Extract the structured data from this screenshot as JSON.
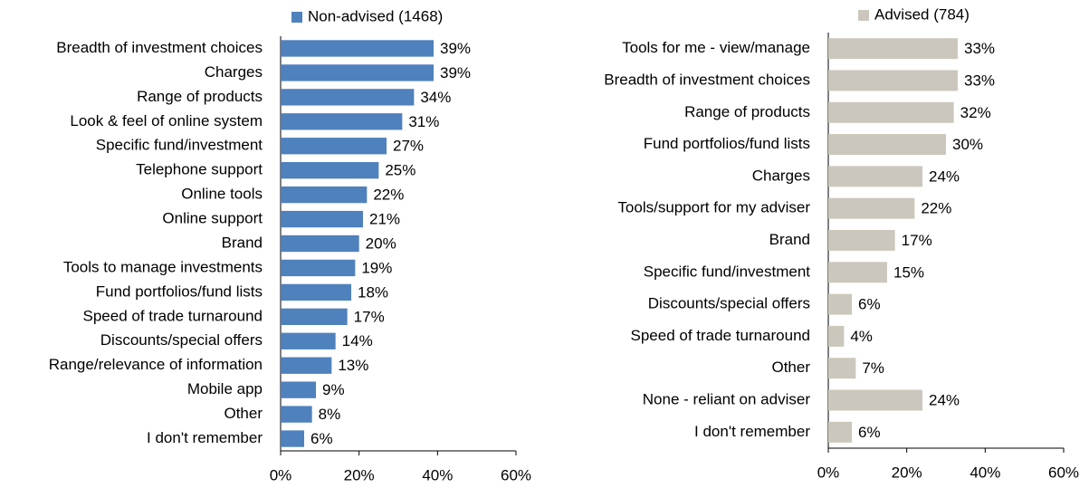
{
  "chart_data": [
    {
      "type": "bar",
      "orientation": "horizontal",
      "categories": [
        "Breadth of investment choices",
        "Charges",
        "Range of products",
        "Look & feel of online system",
        "Specific fund/investment",
        "Telephone support",
        "Online tools",
        "Online support",
        "Brand",
        "Tools to manage investments",
        "Fund portfolios/fund lists",
        "Speed of trade turnaround",
        "Discounts/special offers",
        "Range/relevance of information",
        "Mobile app",
        "Other",
        "I don't remember"
      ],
      "series": [
        {
          "name": "Non-advised (1468)",
          "color": "#4f81bd",
          "values": [
            39,
            39,
            34,
            31,
            27,
            25,
            22,
            21,
            20,
            19,
            18,
            17,
            14,
            13,
            9,
            8,
            6
          ],
          "value_labels": [
            "39%",
            "39%",
            "34%",
            "31%",
            "27%",
            "25%",
            "22%",
            "21%",
            "20%",
            "19%",
            "18%",
            "17%",
            "14%",
            "13%",
            "9%",
            "8%",
            "6%"
          ]
        }
      ],
      "xlim": [
        0,
        60
      ],
      "xticks": [
        {
          "value": 0,
          "label": "0%"
        },
        {
          "value": 20,
          "label": "20%"
        },
        {
          "value": 40,
          "label": "40%"
        },
        {
          "value": 60,
          "label": "60%"
        }
      ],
      "legend": "top"
    },
    {
      "type": "bar",
      "orientation": "horizontal",
      "categories": [
        "Tools for me - view/manage",
        "Breadth of investment choices",
        "Range of products",
        "Fund portfolios/fund lists",
        "Charges",
        "Tools/support for my adviser",
        "Brand",
        "Specific fund/investment",
        "Discounts/special offers",
        "Speed of trade turnaround",
        "Other",
        "None - reliant on adviser",
        "I don't remember"
      ],
      "series": [
        {
          "name": "Advised (784)",
          "color": "#ccc7bc",
          "values": [
            33,
            33,
            32,
            30,
            24,
            22,
            17,
            15,
            6,
            4,
            7,
            24,
            6
          ],
          "value_labels": [
            "33%",
            "33%",
            "32%",
            "30%",
            "24%",
            "22%",
            "17%",
            "15%",
            "6%",
            "4%",
            "7%",
            "24%",
            "6%"
          ]
        }
      ],
      "xlim": [
        0,
        60
      ],
      "xticks": [
        {
          "value": 0,
          "label": "0%"
        },
        {
          "value": 20,
          "label": "20%"
        },
        {
          "value": 40,
          "label": "40%"
        },
        {
          "value": 60,
          "label": "60%"
        }
      ],
      "legend": "top"
    }
  ]
}
